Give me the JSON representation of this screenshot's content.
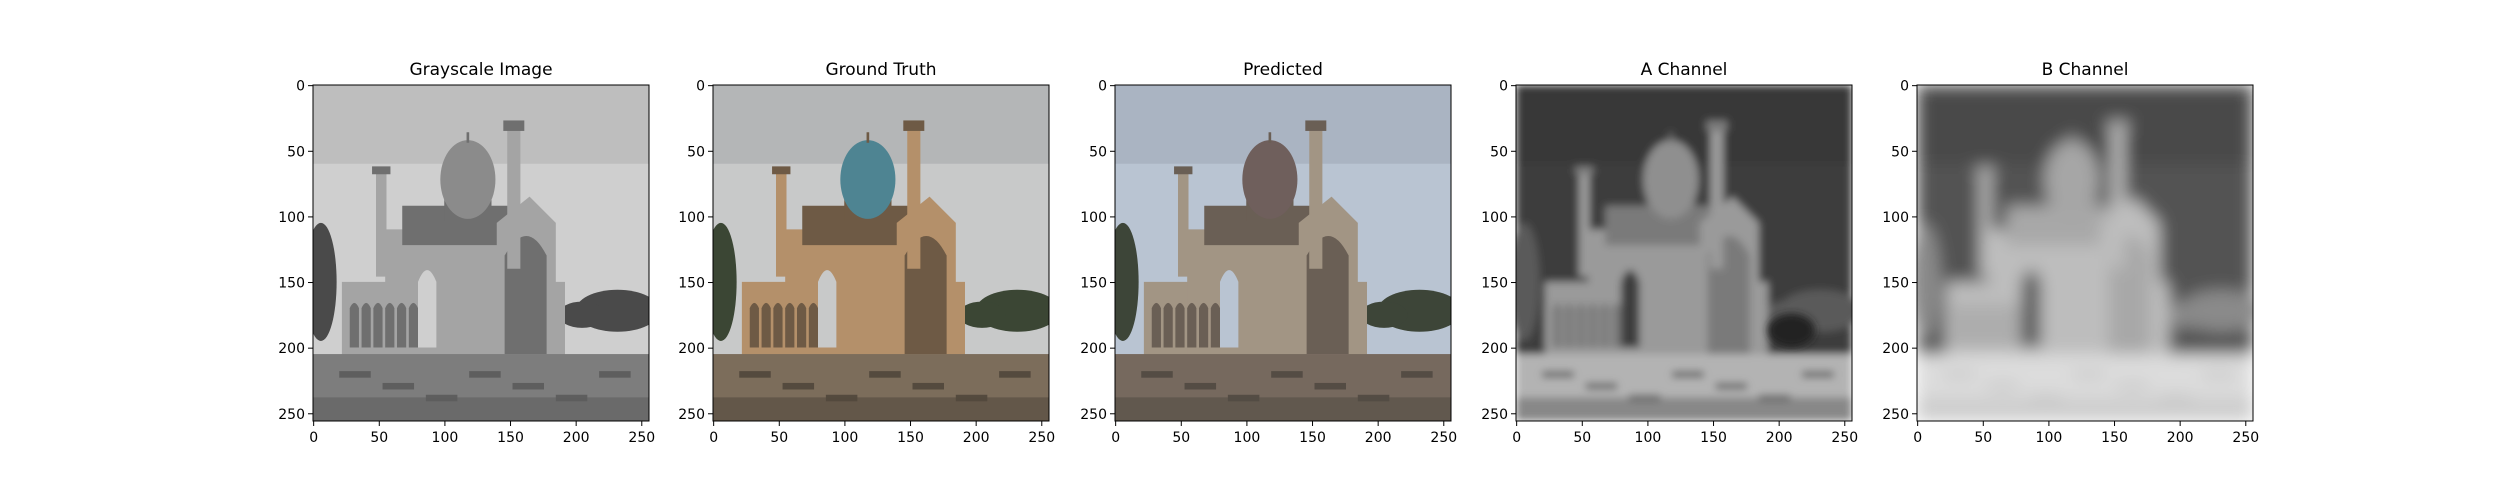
{
  "figure": {
    "panels": [
      {
        "title": "Grayscale Image",
        "mode": "gray",
        "x_ticks": [
          "0",
          "50",
          "100",
          "150",
          "200",
          "250"
        ],
        "y_ticks": [
          "0",
          "50",
          "100",
          "150",
          "200",
          "250"
        ]
      },
      {
        "title": "Ground Truth",
        "mode": "truth",
        "x_ticks": [
          "0",
          "50",
          "100",
          "150",
          "200",
          "250"
        ],
        "y_ticks": [
          "0",
          "50",
          "100",
          "150",
          "200",
          "250"
        ]
      },
      {
        "title": "Predicted",
        "mode": "pred",
        "x_ticks": [
          "0",
          "50",
          "100",
          "150",
          "200",
          "250"
        ],
        "y_ticks": [
          "0",
          "50",
          "100",
          "150",
          "200",
          "250"
        ]
      },
      {
        "title": "A Channel",
        "mode": "a",
        "x_ticks": [
          "0",
          "50",
          "100",
          "150",
          "200",
          "250"
        ],
        "y_ticks": [
          "0",
          "50",
          "100",
          "150",
          "200",
          "250"
        ]
      },
      {
        "title": "B Channel",
        "mode": "b",
        "x_ticks": [
          "0",
          "50",
          "100",
          "150",
          "200",
          "250"
        ],
        "y_ticks": [
          "0",
          "50",
          "100",
          "150",
          "200",
          "250"
        ]
      }
    ],
    "colors": {
      "sky_truth": "#c8c9c9",
      "sky_pred": "#b9c4d2",
      "building_truth": "#b4906a",
      "building_pred": "#a29584",
      "dome_truth": "#4e8492",
      "dome_pred": "#6f5f5c",
      "trees": "#3b4634",
      "ground": "#7c6d5b"
    }
  }
}
